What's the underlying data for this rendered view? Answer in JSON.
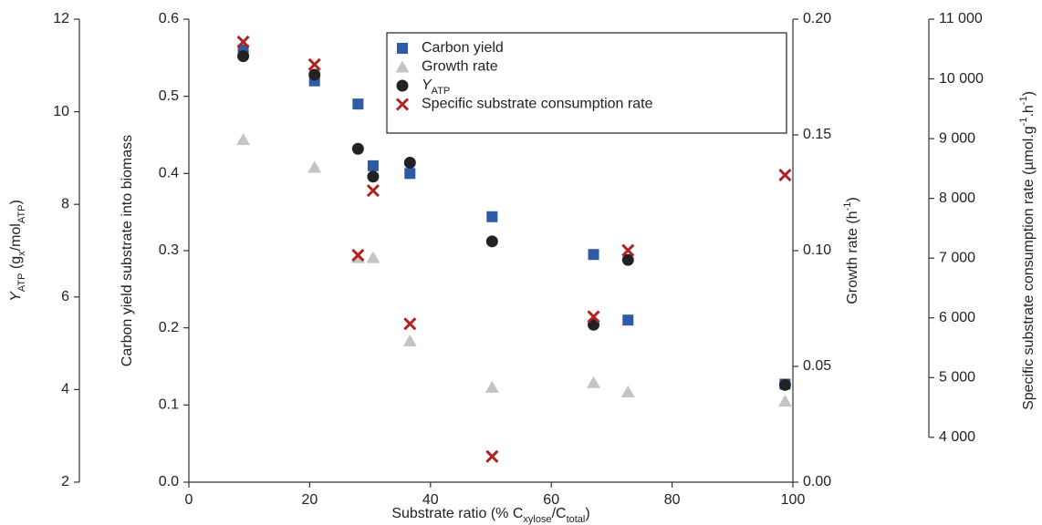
{
  "chart_data": {
    "type": "scatter",
    "x_label": [
      {
        "text": "Substrate ratio (% C"
      },
      {
        "text": "xylose",
        "sub": true
      },
      {
        "text": "/C"
      },
      {
        "text": "total",
        "sub": true
      },
      {
        "text": ")"
      }
    ],
    "x": [
      9,
      20.8,
      28,
      30.5,
      36.6,
      50.2,
      67,
      72.7,
      98.7
    ],
    "xlim": [
      0,
      100
    ],
    "xticks": [
      0,
      20,
      40,
      60,
      80,
      100
    ],
    "y_label": [
      {
        "text": "Carbon yield substrate into biomass"
      }
    ],
    "ylim": [
      0,
      0.6
    ],
    "yticks": [
      {
        "value": 0,
        "label": "0.0"
      },
      0.1,
      0.2,
      0.3,
      0.4,
      0.5,
      0.6
    ],
    "y2_label": [
      {
        "text": "Growth rate (h"
      },
      {
        "text": "-1",
        "sup": true
      },
      {
        "text": ")"
      }
    ],
    "y2lim": [
      0,
      0.2
    ],
    "y2ticks": [
      {
        "value": 0,
        "label": "0.00"
      },
      0.05,
      {
        "value": 0.1,
        "label": "0.10"
      },
      0.15,
      {
        "value": 0.2,
        "label": "0.20"
      }
    ],
    "y3_label": [
      {
        "text": "Y",
        "italic": true
      },
      {
        "text": "ATP",
        "sub": true
      },
      {
        "text": " (g"
      },
      {
        "text": "x",
        "sub": true
      },
      {
        "text": "/mol"
      },
      {
        "text": "ATP",
        "sub": true
      },
      {
        "text": ")"
      }
    ],
    "y3lim": [
      2,
      12
    ],
    "y3ticks": [
      2,
      4,
      6,
      8,
      10,
      12
    ],
    "y4_label": [
      {
        "text": "Specific substrate consumption rate (µmol.g"
      },
      {
        "text": "-1",
        "sup": true
      },
      {
        "text": ".h"
      },
      {
        "text": "-1",
        "sup": true
      },
      {
        "text": ")"
      }
    ],
    "y4lim": [
      3250,
      11000
    ],
    "y4ticks": [
      {
        "value": 4000,
        "label": "4 000"
      },
      {
        "value": 5000,
        "label": "5 000"
      },
      {
        "value": 6000,
        "label": "6 000"
      },
      {
        "value": 7000,
        "label": "7 000"
      },
      {
        "value": 8000,
        "label": "8 000"
      },
      {
        "value": 9000,
        "label": "9 000"
      },
      {
        "value": 10000,
        "label": "10 000"
      },
      {
        "value": 11000,
        "label": "11 000"
      }
    ],
    "series": [
      {
        "name": [
          {
            "text": "Carbon yield"
          }
        ],
        "marker": "square",
        "color": "#2d5ba8",
        "axis": "y",
        "values": [
          0.56,
          0.52,
          0.49,
          0.41,
          0.4,
          0.344,
          0.295,
          0.21,
          0.127
        ]
      },
      {
        "name": [
          {
            "text": "Growth rate"
          }
        ],
        "marker": "triangle",
        "color": "#c4c4c4",
        "axis": "y2",
        "values": [
          0.148,
          0.136,
          0.097,
          0.097,
          0.061,
          0.041,
          0.043,
          0.039,
          0.035
        ]
      },
      {
        "name": [
          {
            "text": "Y",
            "italic": true
          },
          {
            "text": "ATP",
            "sub": true
          }
        ],
        "marker": "circle",
        "color": "#222222",
        "axis": "y3",
        "values": [
          11.2,
          10.8,
          9.2,
          8.6,
          8.9,
          7.2,
          5.4,
          6.8,
          4.1
        ]
      },
      {
        "name": [
          {
            "text": "Specific substrate consumption rate"
          }
        ],
        "marker": "cross",
        "color": "#b22222",
        "axis": "y4",
        "values": [
          10620,
          10240,
          7050,
          8130,
          5900,
          3680,
          6020,
          7130,
          8390
        ]
      }
    ]
  }
}
